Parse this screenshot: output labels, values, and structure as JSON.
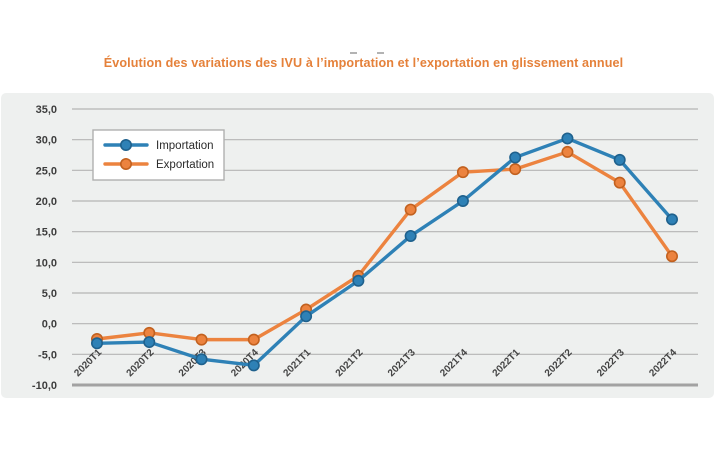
{
  "chart_data": {
    "type": "line",
    "title": "Évolution des variations des IVU à l’importation et l’exportation en glissement annuel",
    "categories": [
      "2020T1",
      "2020T2",
      "2020T3",
      "2020T4",
      "2021T1",
      "2021T2",
      "2021T3",
      "2021T4",
      "2022T1",
      "2022T2",
      "2022T3",
      "2022T4"
    ],
    "series": [
      {
        "name": "Importation",
        "color": "#2e81b6",
        "marker_stroke": "#1f618d",
        "values": [
          -3.2,
          -3.0,
          -5.8,
          -6.8,
          1.2,
          7.0,
          14.3,
          20.0,
          27.1,
          30.2,
          26.7,
          17.0
        ]
      },
      {
        "name": "Exportation",
        "color": "#ec833f",
        "marker_stroke": "#c2611f",
        "values": [
          -2.5,
          -1.5,
          -2.6,
          -2.6,
          2.3,
          7.8,
          18.6,
          24.7,
          25.2,
          28.0,
          23.0,
          11.0
        ]
      }
    ],
    "ylim": [
      -10,
      35
    ],
    "ytick_step": 5,
    "ytick_labels": [
      "35,0",
      "30,0",
      "25,0",
      "20,0",
      "15,0",
      "10,0",
      "5,0",
      "0,0",
      "-5,0",
      "-10,0"
    ],
    "xlabel": "",
    "ylabel": "",
    "grid": true,
    "legend_position": "upper-left"
  },
  "colors": {
    "title": "#e5813a",
    "panel_bg": "#eef0ef",
    "gridline": "#b5b5b5",
    "axis_line": "#a2a2a2",
    "tick_text": "#3d3d3d",
    "legend_border": "#b0b0b0",
    "legend_text": "#2b2b2b"
  }
}
